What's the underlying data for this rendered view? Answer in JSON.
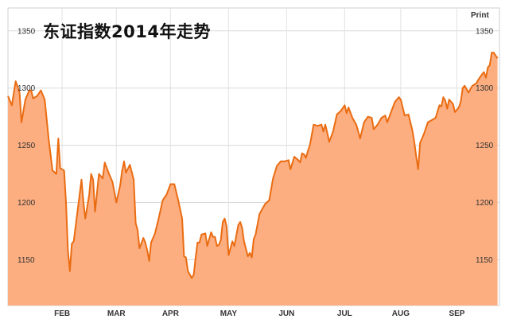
{
  "chart_data": {
    "type": "area",
    "title": "东证指数2014年走势",
    "xlabel": "",
    "ylabel": "",
    "ylim": [
      1110,
      1370
    ],
    "xlim": [
      0,
      254
    ],
    "grid": true,
    "y_ticks": [
      1150,
      1200,
      1250,
      1300,
      1350
    ],
    "y_tick_labels": [
      "1150",
      "1200",
      "1250",
      "1300",
      "1350"
    ],
    "y_axis_labels": "both-sides",
    "x_ticks": [
      {
        "label": "FEB",
        "at": 28
      },
      {
        "label": "MAR",
        "at": 56
      },
      {
        "label": "APR",
        "at": 84
      },
      {
        "label": "MAY",
        "at": 114
      },
      {
        "label": "JUN",
        "at": 144
      },
      {
        "label": "JUL",
        "at": 174
      },
      {
        "label": "AUG",
        "at": 203
      },
      {
        "label": "SEP",
        "at": 232
      }
    ],
    "series": [
      {
        "line_color": "#ea6c12",
        "fill_color": "#fcae80",
        "points": [
          [
            0,
            1293
          ],
          [
            2,
            1285
          ],
          [
            4,
            1306
          ],
          [
            6,
            1296
          ],
          [
            7,
            1270
          ],
          [
            9,
            1290
          ],
          [
            11,
            1298
          ],
          [
            12,
            1298
          ],
          [
            13,
            1291
          ],
          [
            15,
            1293
          ],
          [
            17,
            1298
          ],
          [
            19,
            1290
          ],
          [
            21,
            1256
          ],
          [
            23,
            1228
          ],
          [
            25,
            1225
          ],
          [
            26,
            1256
          ],
          [
            27,
            1230
          ],
          [
            29,
            1228
          ],
          [
            30,
            1200
          ],
          [
            31,
            1158
          ],
          [
            32,
            1140
          ],
          [
            33,
            1164
          ],
          [
            34,
            1166
          ],
          [
            36,
            1193
          ],
          [
            38,
            1220
          ],
          [
            39,
            1200
          ],
          [
            40,
            1186
          ],
          [
            42,
            1207
          ],
          [
            43,
            1225
          ],
          [
            44,
            1220
          ],
          [
            45,
            1192
          ],
          [
            47,
            1225
          ],
          [
            49,
            1221
          ],
          [
            50,
            1235
          ],
          [
            52,
            1226
          ],
          [
            54,
            1218
          ],
          [
            56,
            1200
          ],
          [
            58,
            1215
          ],
          [
            59,
            1228
          ],
          [
            60,
            1236
          ],
          [
            61,
            1226
          ],
          [
            63,
            1233
          ],
          [
            65,
            1220
          ],
          [
            66,
            1182
          ],
          [
            67,
            1176
          ],
          [
            68,
            1160
          ],
          [
            70,
            1169
          ],
          [
            71,
            1165
          ],
          [
            72,
            1158
          ],
          [
            73,
            1149
          ],
          [
            74,
            1165
          ],
          [
            76,
            1173
          ],
          [
            78,
            1187
          ],
          [
            80,
            1202
          ],
          [
            82,
            1207
          ],
          [
            84,
            1216
          ],
          [
            86,
            1216
          ],
          [
            88,
            1202
          ],
          [
            90,
            1186
          ],
          [
            91,
            1153
          ],
          [
            92,
            1152
          ],
          [
            93,
            1140
          ],
          [
            95,
            1134
          ],
          [
            96,
            1137
          ],
          [
            97,
            1152
          ],
          [
            98,
            1165
          ],
          [
            99,
            1165
          ],
          [
            100,
            1172
          ],
          [
            102,
            1173
          ],
          [
            103,
            1162
          ],
          [
            104,
            1168
          ],
          [
            105,
            1174
          ],
          [
            106,
            1170
          ],
          [
            107,
            1170
          ],
          [
            108,
            1162
          ],
          [
            109,
            1163
          ],
          [
            110,
            1167
          ],
          [
            111,
            1183
          ],
          [
            112,
            1186
          ],
          [
            113,
            1179
          ],
          [
            114,
            1154
          ],
          [
            115,
            1160
          ],
          [
            116,
            1166
          ],
          [
            117,
            1162
          ],
          [
            118,
            1171
          ],
          [
            119,
            1180
          ],
          [
            120,
            1183
          ],
          [
            121,
            1178
          ],
          [
            122,
            1166
          ],
          [
            124,
            1153
          ],
          [
            125,
            1156
          ],
          [
            126,
            1152
          ],
          [
            127,
            1168
          ],
          [
            128,
            1172
          ],
          [
            130,
            1190
          ],
          [
            131,
            1193
          ],
          [
            133,
            1199
          ],
          [
            135,
            1202
          ],
          [
            137,
            1221
          ],
          [
            139,
            1232
          ],
          [
            141,
            1236
          ],
          [
            143,
            1236
          ],
          [
            145,
            1237
          ],
          [
            146,
            1229
          ],
          [
            148,
            1240
          ],
          [
            150,
            1237
          ],
          [
            151,
            1235
          ],
          [
            152,
            1243
          ],
          [
            153,
            1242
          ],
          [
            154,
            1239
          ],
          [
            155,
            1245
          ],
          [
            156,
            1250
          ],
          [
            158,
            1268
          ],
          [
            160,
            1267
          ],
          [
            162,
            1268
          ],
          [
            163,
            1262
          ],
          [
            164,
            1268
          ],
          [
            165,
            1261
          ],
          [
            166,
            1253
          ],
          [
            168,
            1262
          ],
          [
            170,
            1277
          ],
          [
            172,
            1280
          ],
          [
            174,
            1285
          ],
          [
            175,
            1278
          ],
          [
            176,
            1283
          ],
          [
            178,
            1274
          ],
          [
            180,
            1268
          ],
          [
            182,
            1256
          ],
          [
            184,
            1270
          ],
          [
            186,
            1275
          ],
          [
            188,
            1274
          ],
          [
            189,
            1264
          ],
          [
            191,
            1268
          ],
          [
            193,
            1274
          ],
          [
            195,
            1276
          ],
          [
            196,
            1270
          ],
          [
            198,
            1279
          ],
          [
            200,
            1288
          ],
          [
            202,
            1292
          ],
          [
            203,
            1290
          ],
          [
            205,
            1276
          ],
          [
            207,
            1277
          ],
          [
            209,
            1263
          ],
          [
            210,
            1253
          ],
          [
            211,
            1240
          ],
          [
            212,
            1229
          ],
          [
            213,
            1252
          ],
          [
            215,
            1260
          ],
          [
            217,
            1270
          ],
          [
            219,
            1272
          ],
          [
            221,
            1274
          ],
          [
            223,
            1285
          ],
          [
            224,
            1284
          ],
          [
            225,
            1292
          ],
          [
            226,
            1289
          ],
          [
            227,
            1282
          ],
          [
            228,
            1290
          ],
          [
            230,
            1286
          ],
          [
            231,
            1279
          ],
          [
            233,
            1283
          ],
          [
            234,
            1288
          ],
          [
            235,
            1300
          ],
          [
            236,
            1302
          ],
          [
            238,
            1296
          ],
          [
            240,
            1302
          ],
          [
            242,
            1304
          ],
          [
            243,
            1307
          ],
          [
            245,
            1312
          ],
          [
            246,
            1314
          ],
          [
            247,
            1309
          ],
          [
            248,
            1318
          ],
          [
            249,
            1320
          ],
          [
            250,
            1331
          ],
          [
            251,
            1331
          ],
          [
            253,
            1326
          ]
        ]
      }
    ]
  },
  "toolbar": {
    "print_label": "Print"
  }
}
